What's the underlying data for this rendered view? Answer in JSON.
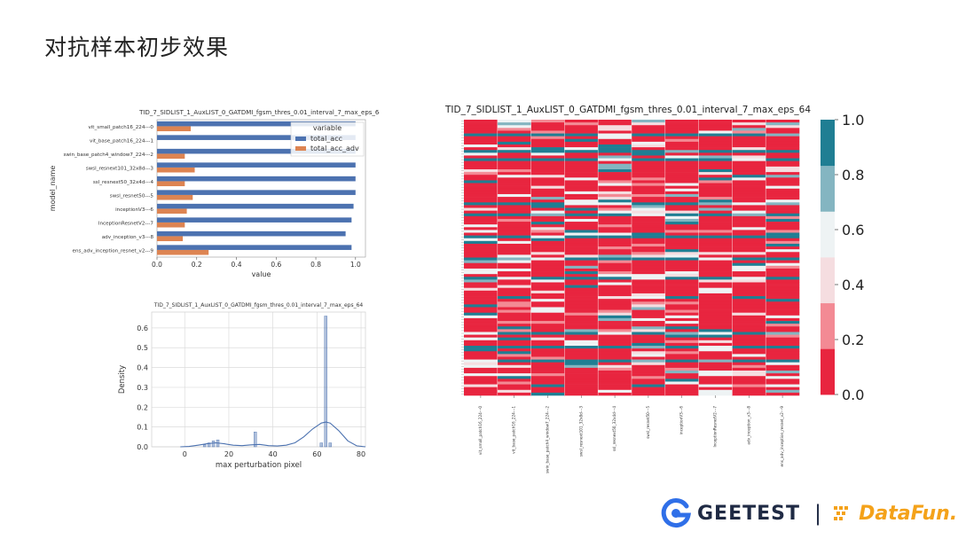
{
  "slide": {
    "title": "对抗样本初步效果"
  },
  "logos": {
    "geetest": "GEETEST",
    "separator": "|",
    "datafun": "DataFun."
  },
  "chart_data": [
    {
      "type": "bar",
      "orientation": "horizontal",
      "title": "TID_7_SIDLIST_1_AuxLIST_0_GATDMI_fgsm_thres_0.01_interval_7_max_eps_64",
      "xlabel": "value",
      "ylabel": "model_name",
      "xlim": [
        0,
        1.05
      ],
      "xticks": [
        "0.0",
        "0.2",
        "0.4",
        "0.6",
        "0.8",
        "1.0"
      ],
      "categories": [
        "vit_small_patch16_224---0",
        "vit_base_patch16_224---1",
        "swin_base_patch4_window7_224---2",
        "swsl_resnext101_32x8d---3",
        "ssl_resnext50_32x4d---4",
        "swsl_resnet50---5",
        "inceptionV3---6",
        "InceptionResnetV2---7",
        "adv_inception_v3---8",
        "ens_adv_inception_resnet_v2---9"
      ],
      "legend_title": "variable",
      "legend_position": "upper-right",
      "series": [
        {
          "name": "total_acc",
          "color": "#4c72b0",
          "values": [
            1.0,
            1.0,
            1.0,
            1.0,
            1.0,
            1.0,
            0.99,
            0.98,
            0.95,
            0.98
          ]
        },
        {
          "name": "total_acc_adv",
          "color": "#dd8452",
          "values": [
            0.17,
            0.0,
            0.14,
            0.19,
            0.14,
            0.18,
            0.15,
            0.14,
            0.13,
            0.26
          ]
        }
      ]
    },
    {
      "type": "histogram-density",
      "title": "TID_7_SIDLIST_1_AuxLIST_0_GATDMI_fgsm_thres_0.01_interval_7_max_eps_64",
      "xlabel": "max perturbation pixel",
      "ylabel": "Density",
      "xlim": [
        -15,
        82
      ],
      "ylim": [
        0,
        0.68
      ],
      "xticks": [
        "0",
        "20",
        "40",
        "60",
        "80"
      ],
      "yticks": [
        "0.0",
        "0.1",
        "0.2",
        "0.3",
        "0.4",
        "0.5",
        "0.6"
      ],
      "grid": true,
      "color": "#4c72b0",
      "bins": [
        {
          "x": 9,
          "density": 0.01
        },
        {
          "x": 11,
          "density": 0.02
        },
        {
          "x": 13,
          "density": 0.03
        },
        {
          "x": 15,
          "density": 0.035
        },
        {
          "x": 32,
          "density": 0.075
        },
        {
          "x": 62,
          "density": 0.02
        },
        {
          "x": 64,
          "density": 0.66
        },
        {
          "x": 66,
          "density": 0.02
        }
      ],
      "kde": [
        [
          -2,
          0
        ],
        [
          2,
          0.002
        ],
        [
          6,
          0.008
        ],
        [
          10,
          0.015
        ],
        [
          14,
          0.02
        ],
        [
          18,
          0.015
        ],
        [
          22,
          0.008
        ],
        [
          26,
          0.006
        ],
        [
          30,
          0.01
        ],
        [
          34,
          0.012
        ],
        [
          38,
          0.006
        ],
        [
          42,
          0.004
        ],
        [
          46,
          0.008
        ],
        [
          50,
          0.02
        ],
        [
          54,
          0.05
        ],
        [
          58,
          0.09
        ],
        [
          62,
          0.12
        ],
        [
          64,
          0.125
        ],
        [
          66,
          0.12
        ],
        [
          70,
          0.08
        ],
        [
          74,
          0.03
        ],
        [
          78,
          0.005
        ],
        [
          82,
          0
        ]
      ]
    },
    {
      "type": "heatmap",
      "title": "TID_7_SIDLIST_1_AuxLIST_0_GATDMI_fgsm_thres_0.01_interval_7_max_eps_64",
      "columns": [
        "vit_small_patch16_224---0",
        "vit_base_patch16_224---1",
        "swin_base_patch4_window7_224---2",
        "swsl_resnext101_32x8d---3",
        "ssl_resnext50_32x4d---4",
        "swsl_resnet50---5",
        "inceptionV3---6",
        "InceptionResnetV2---7",
        "adv_inception_v3---8",
        "ens_adv_inception_resnet_v2---9"
      ],
      "colorbar_ticks": [
        "0.0",
        "0.2",
        "0.4",
        "0.6",
        "0.8",
        "1.0"
      ],
      "colorbar_range": [
        0,
        1
      ],
      "colormap": [
        "#e8253f",
        "#f38a94",
        "#f5dde0",
        "#eef3f4",
        "#84b5c1",
        "#1f7e93"
      ],
      "row_count": 100,
      "dominant_value": 0.0
    }
  ]
}
